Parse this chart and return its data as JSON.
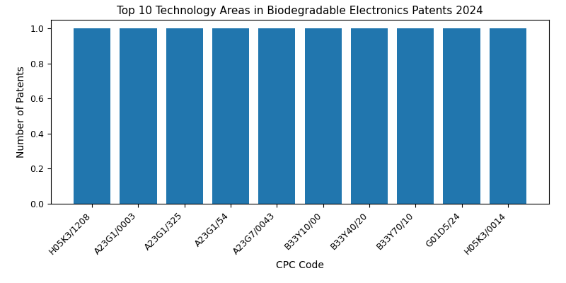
{
  "title": "Top 10 Technology Areas in Biodegradable Electronics Patents 2024",
  "categories": [
    "H05K3/1208",
    "A23G1/0003",
    "A23G1/325",
    "A23G1/54",
    "A23G7/0043",
    "B33Y10/00",
    "B33Y40/20",
    "B33Y70/10",
    "G01D5/24",
    "H05K3/0014"
  ],
  "values": [
    1,
    1,
    1,
    1,
    1,
    1,
    1,
    1,
    1,
    1
  ],
  "bar_color": "#2176ae",
  "xlabel": "CPC Code",
  "ylabel": "Number of Patents",
  "ylim": [
    0,
    1.05
  ],
  "yticks": [
    0.0,
    0.2,
    0.4,
    0.6,
    0.8,
    1.0
  ],
  "title_fontsize": 11,
  "label_fontsize": 10,
  "tick_fontsize": 9,
  "figsize": [
    8.0,
    4.0
  ],
  "dpi": 100,
  "bar_width": 0.8
}
